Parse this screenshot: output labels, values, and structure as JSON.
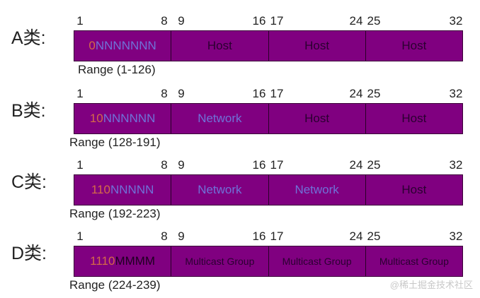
{
  "colors": {
    "bar_fill": "#800080",
    "prefix": "#d46a48",
    "network": "#6f72d8",
    "host": "#2a0030"
  },
  "bit_labels": [
    "1",
    "8",
    "9",
    "16",
    "17",
    "24",
    "25",
    "32"
  ],
  "classes": [
    {
      "label": "A类:",
      "prefix": "0",
      "first_rest": "NNNNNNN",
      "first_rest_kind": "net",
      "cells": [
        {
          "text": "Host",
          "kind": "host"
        },
        {
          "text": "Host",
          "kind": "host"
        },
        {
          "text": "Host",
          "kind": "host"
        }
      ],
      "range": "Range (1-126)"
    },
    {
      "label": "B类:",
      "prefix": "10",
      "first_rest": "NNNNNN",
      "first_rest_kind": "net",
      "cells": [
        {
          "text": "Network",
          "kind": "net"
        },
        {
          "text": "Host",
          "kind": "host"
        },
        {
          "text": "Host",
          "kind": "host"
        }
      ],
      "range": "Range (128-191)"
    },
    {
      "label": "C类:",
      "prefix": "110",
      "first_rest": "NNNNN",
      "first_rest_kind": "net",
      "cells": [
        {
          "text": "Network",
          "kind": "net"
        },
        {
          "text": "Network",
          "kind": "net"
        },
        {
          "text": "Host",
          "kind": "host"
        }
      ],
      "range": "Range (192-223)"
    },
    {
      "label": "D类:",
      "prefix": "1110",
      "first_rest": "MMMM",
      "first_rest_kind": "dark",
      "cells": [
        {
          "text": "Multicast Group",
          "kind": "small"
        },
        {
          "text": "Multicast Group",
          "kind": "small"
        },
        {
          "text": "Multicast Group",
          "kind": "small"
        }
      ],
      "range": "Range (224-239)"
    }
  ],
  "watermark": "@稀土掘金技术社区"
}
